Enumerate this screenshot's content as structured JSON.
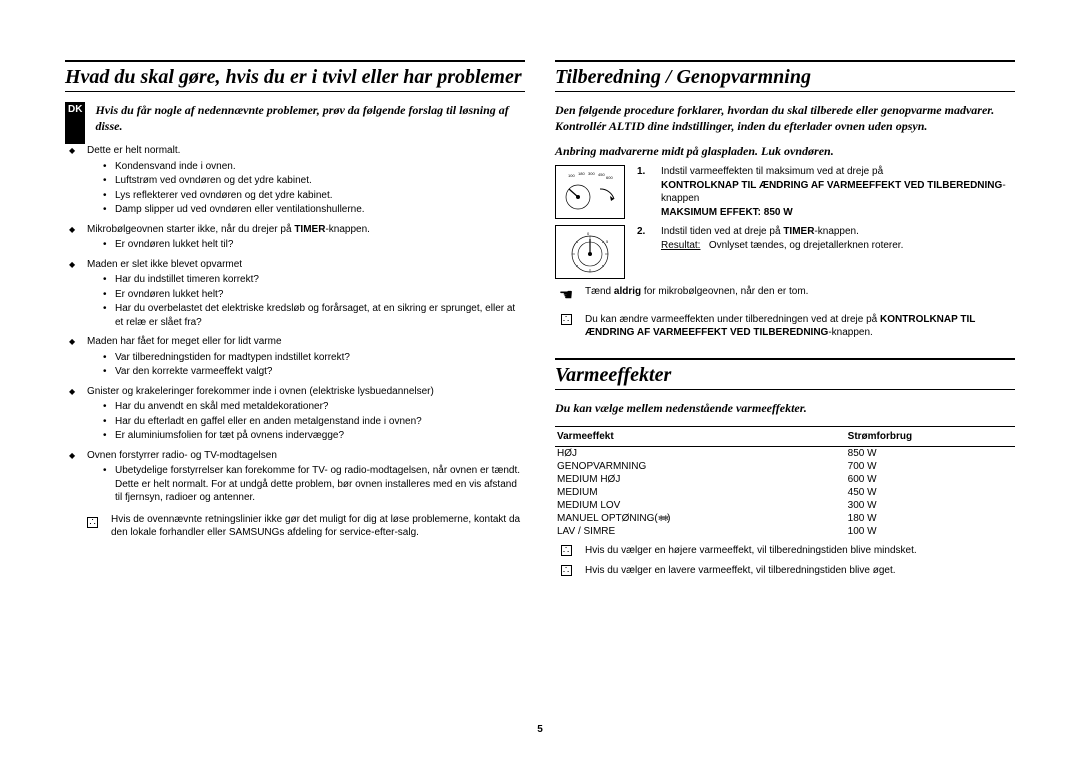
{
  "page_number": "5",
  "badge": "DK",
  "left": {
    "title": "Hvad du skal gøre, hvis du er i tvivl eller har problemer",
    "intro": "Hvis du får nogle af nedennævnte problemer, prøv da følgende forslag til løsning af disse.",
    "b1_head": "Dette er helt normalt.",
    "b1_items": [
      "Kondensvand inde i ovnen.",
      "Luftstrøm ved ovndøren og det ydre kabinet.",
      "Lys reflekterer ved ovndøren og det ydre kabinet.",
      "Damp slipper ud ved ovndøren eller ventilationshullerne."
    ],
    "b2_head_a": "Mikrobølgeovnen starter ikke, når du drejer på ",
    "b2_head_b": "TIMER",
    "b2_head_c": "-knappen.",
    "b2_items": [
      "Er ovndøren lukket helt til?"
    ],
    "b3_head": "Maden er slet ikke blevet opvarmet",
    "b3_items": [
      "Har du indstillet timeren korrekt?",
      "Er ovndøren lukket helt?",
      "Har du overbelastet det elektriske kredsløb og forårsaget, at en sikring er sprunget, eller at et relæ er slået fra?"
    ],
    "b4_head": "Maden har fået for meget eller for lidt varme",
    "b4_items": [
      "Var tilberedningstiden for madtypen indstillet korrekt?",
      "Var den korrekte varmeeffekt valgt?"
    ],
    "b5_head": "Gnister og krakeleringer forekommer inde i ovnen (elektriske lysbuedannelser)",
    "b5_items": [
      "Har du anvendt en skål med metaldekorationer?",
      "Har du efterladt en gaffel eller en anden metalgenstand inde i ovnen?",
      "Er aluminiumsfolien for tæt på ovnens indervægge?"
    ],
    "b6_head": "Ovnen forstyrrer radio- og TV-modtagelsen",
    "b6_items": [
      "Ubetydelige forstyrrelser kan forekomme for TV- og radio-modtagelsen, når ovnen er tændt. Dette er helt normalt. For at undgå dette problem, bør ovnen installeres med en vis afstand til fjernsyn, radioer og antenner."
    ],
    "note": "Hvis de ovennævnte retningslinier ikke gør det muligt for dig at løse problemerne, kontakt da den lokale forhandler eller SAMSUNGs afdeling for service-efter-salg."
  },
  "right": {
    "title1": "Tilberedning / Genopvarmning",
    "intro1": "Den følgende procedure forklarer, hvordan du skal tilberede eller genopvarme madvarer. Kontrollér ALTID dine indstillinger, inden du efterlader ovnen uden opsyn.",
    "sub1": "Anbring madvarerne midt på glaspladen. Luk ovndøren.",
    "step1_a": "Indstil varmeeffekten til maksimum ved at dreje på",
    "step1_b": "KONTROLKNAP TIL ÆNDRING AF VARMEEFFEKT VED TILBEREDNING",
    "step1_c": "-knappen",
    "step1_d": "MAKSIMUM EFFEKT: 850 W",
    "step2_a": "Indstil tiden ved at dreje på ",
    "step2_b": "TIMER",
    "step2_c": "-knappen.",
    "step2_res_label": "Resultat:",
    "step2_res": "Ovnlyset tændes, og drejetallerknen roterer.",
    "warn_a": "Tænd ",
    "warn_b": "aldrig",
    "warn_c": " for mikrobølgeovnen, når den er tom.",
    "tip_a": "Du kan ændre varmeeffekten under tilberedningen ved at dreje på",
    "tip_b": "KONTROLKNAP TIL ÆNDRING AF VARMEEFFEKT VED TILBEREDNING",
    "tip_c": "-knappen.",
    "title2": "Varmeeffekter",
    "intro2": "Du kan vælge mellem nedenstående varmeeffekter.",
    "table": {
      "h1": "Varmeeffekt",
      "h2": "Strømforbrug",
      "rows": [
        {
          "name": "HØJ",
          "power": "850 W"
        },
        {
          "name": "GENOPVARMNING",
          "power": "700 W"
        },
        {
          "name": "MEDIUM HØJ",
          "power": "600 W"
        },
        {
          "name": "MEDIUM",
          "power": "450 W"
        },
        {
          "name": "MEDIUM LOV",
          "power": "300 W"
        },
        {
          "name": "MANUEL OPTØNING(",
          "suffix": ")",
          "icon": true,
          "power": "180 W"
        },
        {
          "name": "LAV / SIMRE",
          "power": "100 W"
        }
      ]
    },
    "tnote1": "Hvis du vælger en højere varmeeffekt, vil tilberedningstiden blive mindsket.",
    "tnote2": "Hvis du vælger en lavere varmeeffekt, vil tilberedningstiden blive øget."
  }
}
